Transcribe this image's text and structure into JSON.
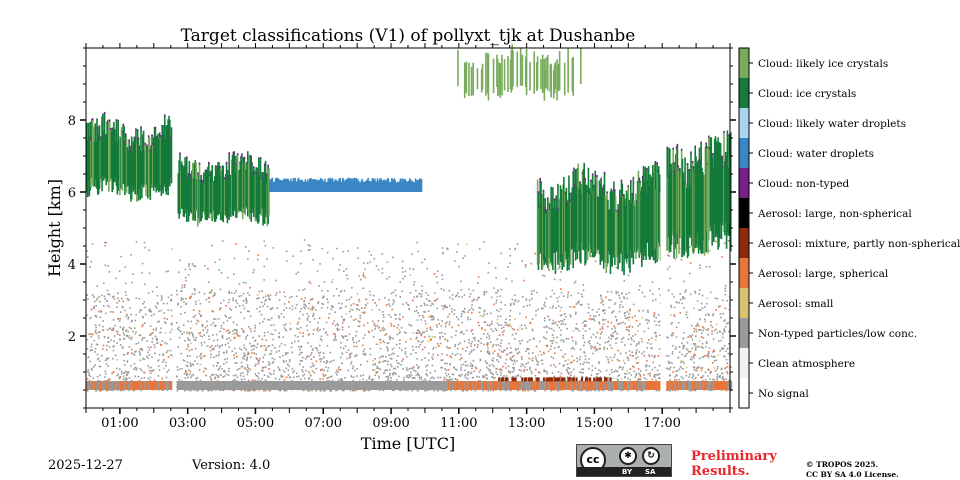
{
  "chart_data": {
    "type": "heatmap",
    "title": "Target classifications (V1) of pollyxt_tjk at Dushanbe",
    "xlabel": "Time [UTC]",
    "ylabel": "Height [km]",
    "xlim_hours": [
      0,
      19
    ],
    "ylim_km": [
      0,
      10
    ],
    "x_ticks": [
      {
        "hour": 1,
        "label": "01:00"
      },
      {
        "hour": 3,
        "label": "03:00"
      },
      {
        "hour": 5,
        "label": "05:00"
      },
      {
        "hour": 7,
        "label": "07:00"
      },
      {
        "hour": 9,
        "label": "09:00"
      },
      {
        "hour": 11,
        "label": "11:00"
      },
      {
        "hour": 13,
        "label": "13:00"
      },
      {
        "hour": 15,
        "label": "15:00"
      },
      {
        "hour": 17,
        "label": "17:00"
      }
    ],
    "y_ticks": [
      {
        "km": 2,
        "label": "2"
      },
      {
        "km": 4,
        "label": "4"
      },
      {
        "km": 6,
        "label": "6"
      },
      {
        "km": 8,
        "label": "8"
      }
    ],
    "data_gaps_hours": [
      [
        2.55,
        2.65
      ],
      [
        16.95,
        17.1
      ]
    ],
    "features": {
      "aerosol_layer_top_km": 3.0,
      "cloud_segments": [
        {
          "class": "Cloud: ice crystals",
          "start": 0.0,
          "end": 2.5,
          "base_km": 5.8,
          "top_km": 8.0
        },
        {
          "class": "Cloud: ice crystals",
          "start": 2.7,
          "end": 5.4,
          "base_km": 5.1,
          "top_km": 7.0
        },
        {
          "class": "Cloud: water droplets",
          "start": 5.4,
          "end": 9.9,
          "base_km": 6.0,
          "top_km": 6.4
        },
        {
          "class": "Cloud: ice crystals",
          "start": 13.3,
          "end": 16.95,
          "base_km": 3.8,
          "top_km": 6.6
        },
        {
          "class": "Cloud: ice crystals",
          "start": 17.1,
          "end": 19.0,
          "base_km": 4.2,
          "top_km": 7.5
        },
        {
          "class": "Cloud: likely ice crystals",
          "start": 10.8,
          "end": 14.6,
          "base_km": 8.6,
          "top_km": 10.0
        }
      ]
    },
    "legend": [
      {
        "label": "Cloud: likely ice crystals",
        "color": "#78ac5c"
      },
      {
        "label": "Cloud: ice crystals",
        "color": "#147a3a"
      },
      {
        "label": "Cloud: likely water droplets",
        "color": "#a8d4f0"
      },
      {
        "label": "Cloud: water droplets",
        "color": "#3a86c4"
      },
      {
        "label": "Cloud: non-typed",
        "color": "#7a1f8a"
      },
      {
        "label": "Aerosol: large, non-spherical",
        "color": "#000000"
      },
      {
        "label": "Aerosol: mixture, partly non-spherical",
        "color": "#8c2a0a"
      },
      {
        "label": "Aerosol: large, spherical",
        "color": "#e8753a"
      },
      {
        "label": "Aerosol: small",
        "color": "#d7c06e"
      },
      {
        "label": "Non-typed particles/low conc.",
        "color": "#9a9a9a"
      },
      {
        "label": "Clean atmosphere",
        "color": "#f2f2f2"
      },
      {
        "label": "No signal",
        "color": "#ffffff"
      }
    ]
  },
  "footer": {
    "date": "2025-12-27",
    "version": "Version: 4.0",
    "preliminary_line1": "Preliminary",
    "preliminary_line2": "Results.",
    "copyright_line1": "© TROPOS 2025.",
    "copyright_line2": "CC BY SA 4.0 License."
  },
  "license_badge": {
    "cc": "cc",
    "by": "BY",
    "sa": "SA"
  }
}
